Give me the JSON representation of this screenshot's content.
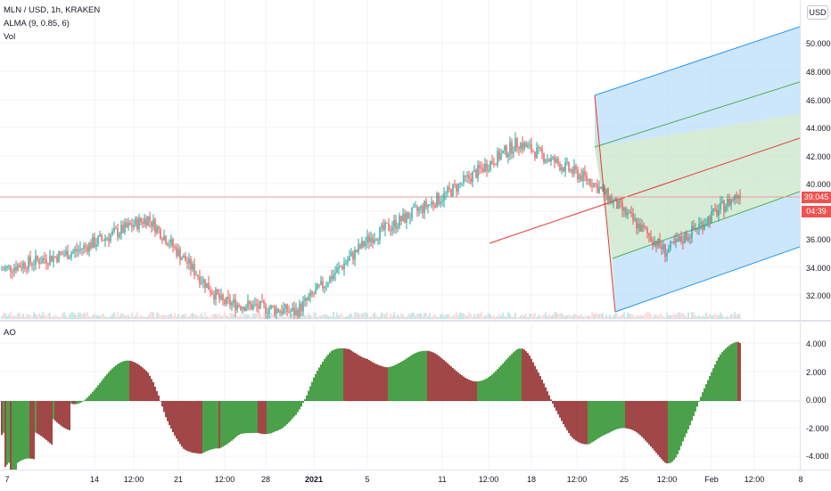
{
  "legend": {
    "symbol": "MLN / USD, 1h, KRAKEN",
    "indicator": "ALMA (9, 0.85, 6)",
    "volume": "Vol"
  },
  "currency": "USD",
  "price_tags": {
    "last_price": "39.045",
    "countdown": "04:39"
  },
  "colors": {
    "up": "#26a69a",
    "down": "#ef5350",
    "ao_up": "#1e8a1e",
    "ao_down": "#8b1a1a",
    "pitchfork_blue": "#2196f3",
    "pitchfork_green": "#4caf50",
    "median_line": "#e53935"
  },
  "ao_panel": {
    "title": "AO",
    "y_labels": [
      "4.000",
      "2.000",
      "0.000",
      "-2.000",
      "-4.000"
    ]
  },
  "price_axis_labels": [
    "50.000",
    "48.000",
    "46.000",
    "44.000",
    "42.000",
    "40.000",
    "36.000",
    "34.000",
    "32.000"
  ],
  "time_axis_labels": [
    "7",
    "14",
    "12:00",
    "21",
    "12:00",
    "28",
    "2021",
    "5",
    "11",
    "12:00",
    "18",
    "12:00",
    "25",
    "12:00",
    "Feb",
    "12:00",
    "8"
  ],
  "chart_data": {
    "type": "line",
    "title": "MLN / USD, 1h, KRAKEN",
    "ylim": [
      30,
      51
    ],
    "x": [
      "7",
      "14",
      "21",
      "28",
      "2021",
      "5",
      "11",
      "18",
      "25",
      "Feb",
      "8"
    ],
    "series": [
      {
        "name": "MLN / USD",
        "values": [
          33.5,
          34.8,
          37.2,
          31.2,
          30.5,
          35.8,
          38.8,
          42.6,
          39.8,
          34.8,
          39.0
        ]
      }
    ]
  }
}
